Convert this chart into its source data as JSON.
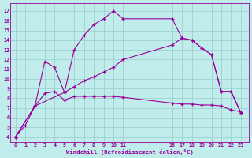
{
  "xlabel": "Windchill (Refroidissement éolien,°C)",
  "bg_color": "#c0ecec",
  "line_color": "#990099",
  "grid_color": "#99cccc",
  "x_ticks": [
    0,
    1,
    2,
    3,
    4,
    5,
    6,
    7,
    8,
    9,
    10,
    11,
    16,
    17,
    18,
    19,
    20,
    21,
    22,
    23
  ],
  "y_ticks": [
    4,
    5,
    6,
    7,
    8,
    9,
    10,
    11,
    12,
    13,
    14,
    15,
    16,
    17
  ],
  "xlim": [
    -0.5,
    23.8
  ],
  "ylim": [
    3.5,
    17.8
  ],
  "line1_x": [
    0,
    1,
    2,
    3,
    4,
    5,
    6,
    7,
    8,
    9,
    10,
    11,
    16,
    17,
    18,
    19,
    20,
    21,
    22,
    23
  ],
  "line1_y": [
    4.0,
    5.2,
    7.2,
    8.5,
    8.7,
    7.8,
    8.2,
    8.2,
    8.2,
    8.2,
    8.2,
    8.1,
    7.5,
    7.4,
    7.4,
    7.3,
    7.3,
    7.2,
    6.8,
    6.6
  ],
  "line2_x": [
    0,
    2,
    3,
    4,
    5,
    6,
    7,
    8,
    9,
    10,
    11,
    16,
    17,
    18,
    19,
    20,
    21,
    22,
    23
  ],
  "line2_y": [
    4.0,
    7.2,
    11.8,
    11.2,
    8.6,
    13.0,
    14.5,
    15.6,
    16.2,
    17.0,
    16.2,
    16.2,
    14.2,
    14.0,
    13.2,
    12.5,
    8.7,
    8.7,
    6.5
  ],
  "line3_x": [
    0,
    2,
    5,
    6,
    7,
    8,
    9,
    10,
    11,
    16,
    17,
    18,
    19,
    20,
    21,
    22,
    23
  ],
  "line3_y": [
    4.0,
    7.2,
    8.6,
    9.2,
    9.8,
    10.2,
    10.7,
    11.2,
    12.0,
    13.5,
    14.2,
    14.0,
    13.2,
    12.5,
    8.7,
    8.7,
    6.5
  ]
}
